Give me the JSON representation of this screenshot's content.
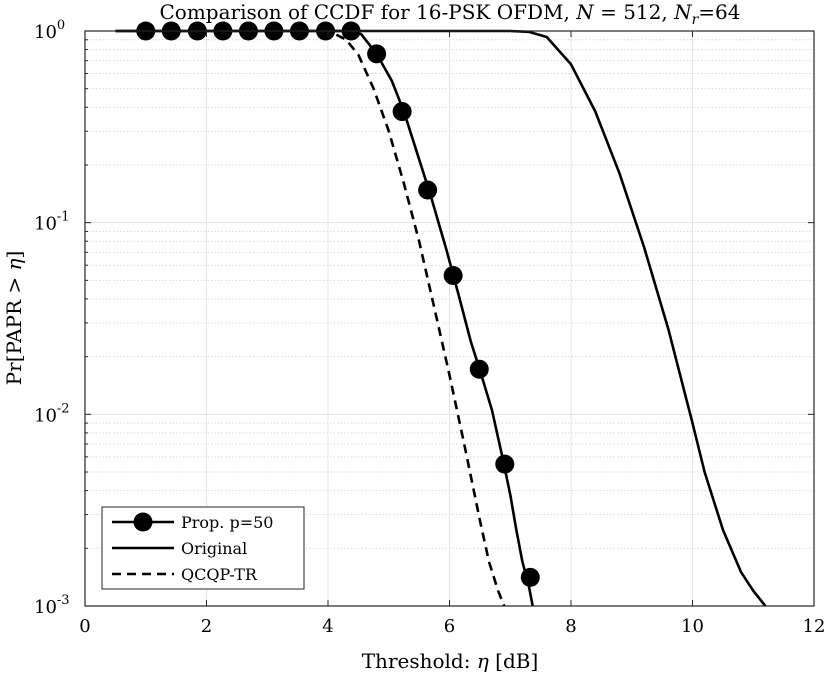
{
  "chart_data": {
    "type": "line",
    "title": "Comparison of CCDF for 16-PSK OFDM, N = 512, Nr=64",
    "title_parts": {
      "prefix": "Comparison of CCDF for 16-PSK OFDM, ",
      "n_sym": "N",
      "n_eq": " = 512, ",
      "nr_sym": "N",
      "nr_sub": "r",
      "nr_eq": "=64"
    },
    "xlabel": "Threshold: η [dB]",
    "xlabel_parts": {
      "pre": "Threshold: ",
      "eta": "η",
      "post": " [dB]"
    },
    "ylabel": "Pr[PAPR > η]",
    "ylabel_parts": {
      "pre": "Pr[PAPR > ",
      "eta": "η",
      "post": "]"
    },
    "xlim": [
      0,
      12
    ],
    "ylim": [
      0.001,
      1
    ],
    "yscale": "log",
    "grid": true,
    "minor_grid": true,
    "legend_placement": "bottom-left",
    "x_ticks": [
      0,
      2,
      4,
      6,
      8,
      10,
      12
    ],
    "x_tick_labels": [
      "0",
      "2",
      "4",
      "6",
      "8",
      "10",
      "12"
    ],
    "y_ticks": [
      {
        "value": 1,
        "base": "10",
        "exp": "0"
      },
      {
        "value": 0.1,
        "base": "10",
        "exp": "-1"
      },
      {
        "value": 0.01,
        "base": "10",
        "exp": "-2"
      },
      {
        "value": 0.001,
        "base": "10",
        "exp": "-3"
      }
    ],
    "series": [
      {
        "name": "Prop. p=50",
        "style": "solid-marker",
        "color": "#000000",
        "x": [
          0.5,
          4.4,
          4.55,
          4.8,
          5.05,
          5.25,
          5.45,
          5.7,
          5.95,
          6.15,
          6.35,
          6.5,
          6.7,
          6.88,
          7.0,
          7.1,
          7.2,
          7.3,
          7.37
        ],
        "y": [
          1,
          1,
          0.96,
          0.76,
          0.55,
          0.38,
          0.24,
          0.135,
          0.072,
          0.042,
          0.024,
          0.017,
          0.0105,
          0.0058,
          0.0038,
          0.0025,
          0.0017,
          0.0013,
          0.001
        ],
        "markers_x": [
          1.0,
          1.42,
          1.85,
          2.27,
          2.69,
          3.11,
          3.53,
          3.96,
          4.38,
          4.8,
          5.22,
          5.64,
          6.06,
          6.49,
          6.91,
          7.33
        ],
        "markers_y": [
          1,
          1,
          1,
          1,
          1,
          1,
          1,
          1,
          1,
          0.76,
          0.38,
          0.148,
          0.053,
          0.0172,
          0.0055,
          0.00141
        ]
      },
      {
        "name": "Original",
        "style": "solid",
        "color": "#000000",
        "x": [
          0.5,
          7.0,
          7.3,
          7.6,
          8.0,
          8.4,
          8.8,
          9.2,
          9.6,
          10.0,
          10.2,
          10.5,
          10.8,
          11.0,
          11.2
        ],
        "y": [
          1,
          1,
          0.99,
          0.93,
          0.67,
          0.38,
          0.18,
          0.075,
          0.028,
          0.009,
          0.005,
          0.0025,
          0.0015,
          0.0012,
          0.001
        ]
      },
      {
        "name": "QCQP-TR",
        "style": "dashed",
        "color": "#000000",
        "x": [
          3.9,
          4.1,
          4.3,
          4.5,
          4.75,
          5.0,
          5.25,
          5.5,
          5.75,
          6.0,
          6.25,
          6.5,
          6.65,
          6.8,
          6.9
        ],
        "y": [
          1,
          0.97,
          0.9,
          0.75,
          0.5,
          0.3,
          0.16,
          0.08,
          0.036,
          0.016,
          0.0068,
          0.0028,
          0.0017,
          0.0012,
          0.001
        ]
      }
    ]
  }
}
